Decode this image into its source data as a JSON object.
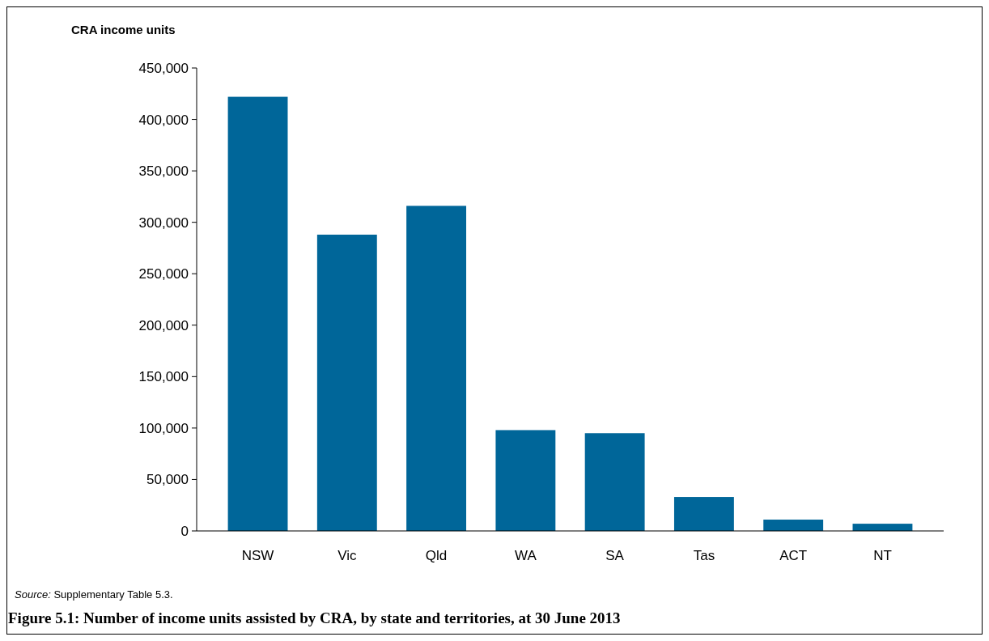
{
  "chart_data": {
    "type": "bar",
    "title": "Figure 5.1: Number of income units assisted by CRA, by state and territories, at 30 June 2013",
    "ylabel": "CRA income units",
    "annotations": [
      "Source: Supplementary Table 5.3."
    ],
    "categories": [
      "NSW",
      "Vic",
      "Qld",
      "WA",
      "SA",
      "Tas",
      "ACT",
      "NT"
    ],
    "values": [
      422000,
      288000,
      316000,
      98000,
      95000,
      33000,
      11000,
      7000
    ],
    "color": "#006699",
    "ylim": [
      0,
      450000
    ],
    "yticks": [
      0,
      {
        "value": 50000,
        "label": "50,000"
      },
      {
        "value": 100000,
        "label": "100,000"
      },
      {
        "value": 150000,
        "label": "150,000"
      },
      {
        "value": 200000,
        "label": "200,000"
      },
      {
        "value": 250000,
        "label": "250,000"
      },
      {
        "value": 300000,
        "label": "300,000"
      },
      {
        "value": 350000,
        "label": "350,000"
      },
      {
        "value": 400000,
        "label": "400,000"
      },
      {
        "value": 450000,
        "label": "450,000"
      }
    ],
    "grid": false
  }
}
